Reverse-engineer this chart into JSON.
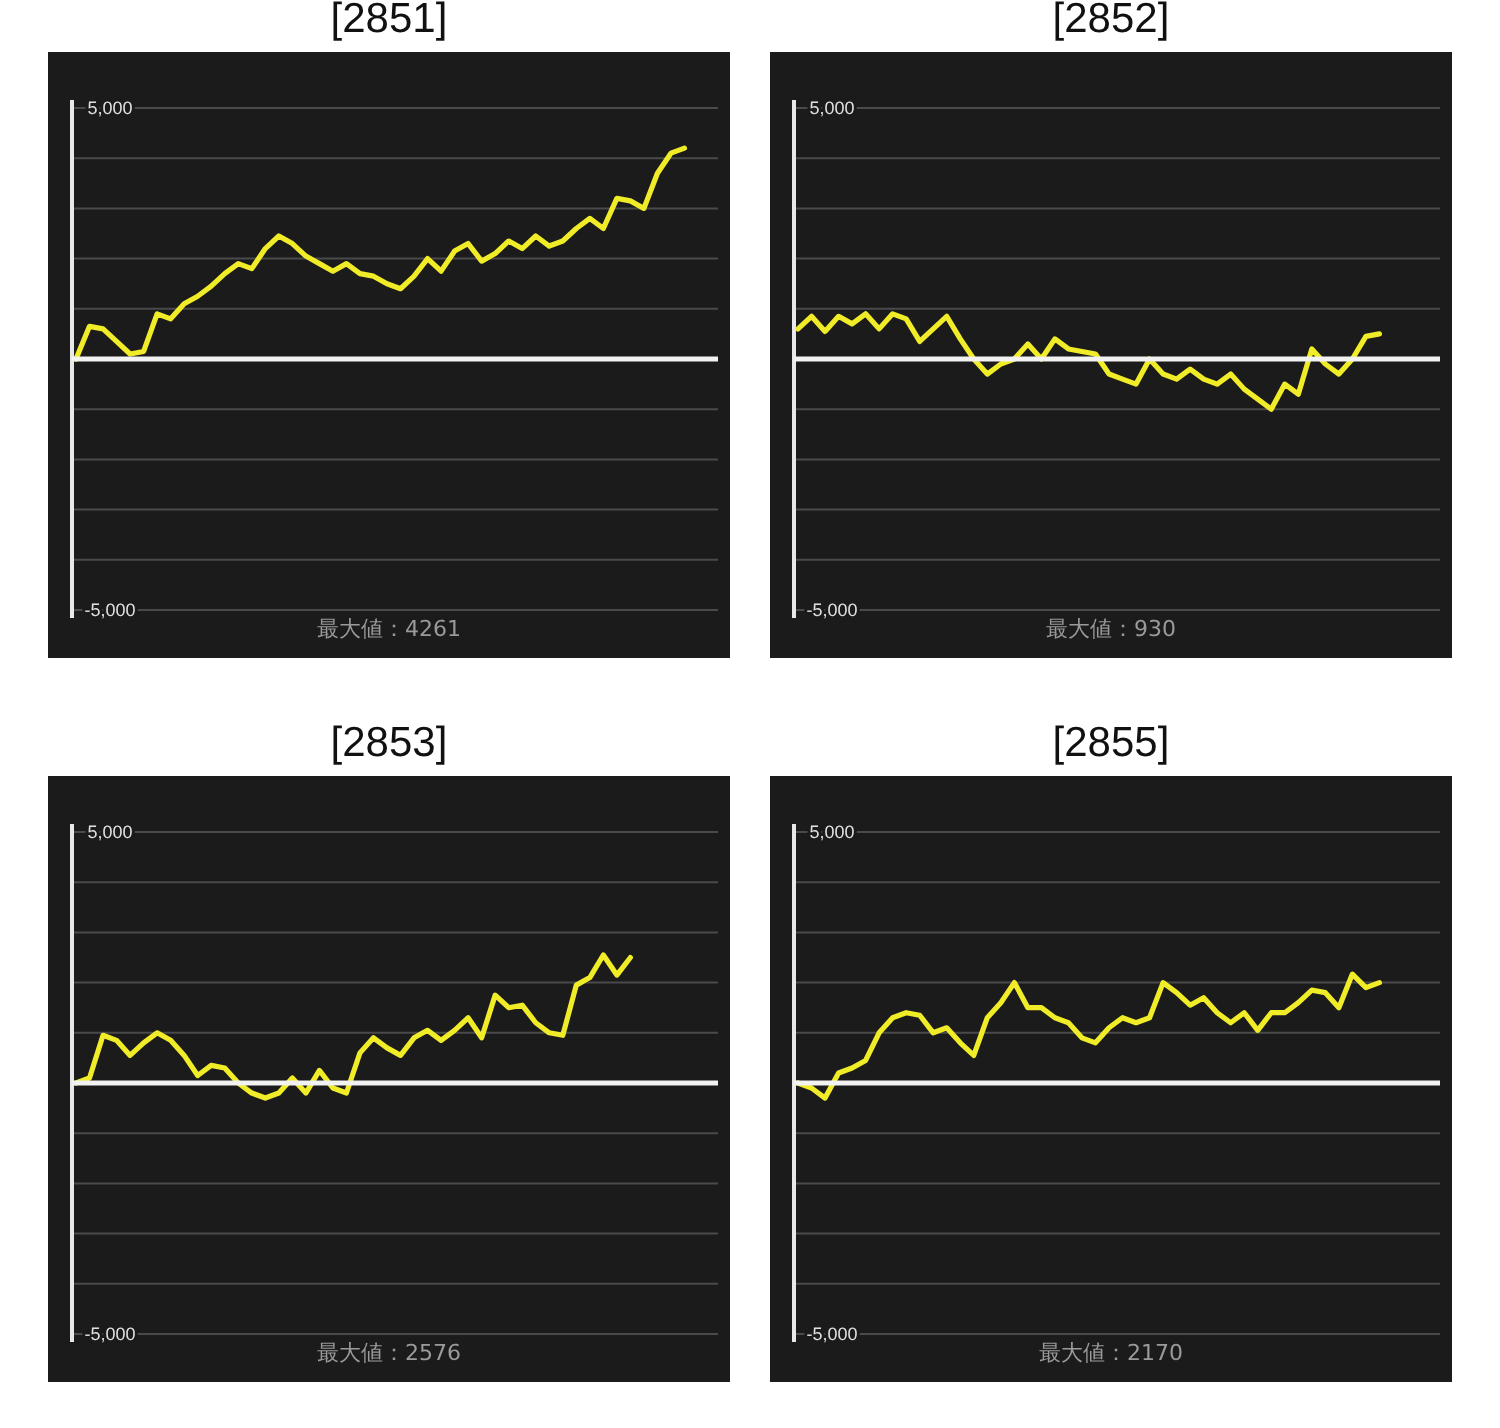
{
  "chart_data": [
    {
      "type": "line",
      "title": "[2851]",
      "tick_labels": "y",
      "grid": "y",
      "ylim": [
        -5000,
        5000
      ],
      "yticks": [
        {
          "value": -5000,
          "label": "-5,000"
        },
        {
          "value": -4000,
          "label": null
        },
        {
          "value": -3000,
          "label": null
        },
        {
          "value": -2000,
          "label": null
        },
        {
          "value": -1000,
          "label": null
        },
        {
          "value": 0,
          "label": null
        },
        {
          "value": 1000,
          "label": null
        },
        {
          "value": 2000,
          "label": null
        },
        {
          "value": 3000,
          "label": null
        },
        {
          "value": 4000,
          "label": null
        },
        {
          "value": 5000,
          "label": "5,000"
        }
      ],
      "categories": [
        null,
        null,
        null,
        null,
        null,
        null,
        null,
        null,
        null,
        null,
        null,
        null,
        null,
        null,
        null,
        null,
        null,
        null,
        null,
        null,
        null,
        null,
        null,
        null,
        null,
        null,
        null,
        null,
        null,
        null,
        null,
        null,
        null,
        null,
        null,
        null,
        null,
        null,
        null,
        null,
        null,
        null,
        null,
        null,
        null,
        null,
        null
      ],
      "series": [
        {
          "color": "#f0ec28",
          "values": [
            0,
            650,
            600,
            350,
            100,
            150,
            900,
            800,
            1100,
            1250,
            1450,
            1700,
            1900,
            1800,
            2200,
            2450,
            2300,
            2050,
            1900,
            1750,
            1900,
            1700,
            1650,
            1500,
            1400,
            1650,
            2000,
            1750,
            2150,
            2300,
            1950,
            2100,
            2350,
            2200,
            2450,
            2250,
            2350,
            2600,
            2800,
            2600,
            3200,
            3150,
            3000,
            3700,
            4100,
            4200,
            null
          ]
        }
      ],
      "annotations": [
        "最大値：4261"
      ]
    },
    {
      "type": "line",
      "title": "[2852]",
      "tick_labels": "y",
      "grid": "y",
      "ylim": [
        -5000,
        5000
      ],
      "yticks": [
        {
          "value": -5000,
          "label": "-5,000"
        },
        {
          "value": -4000,
          "label": null
        },
        {
          "value": -3000,
          "label": null
        },
        {
          "value": -2000,
          "label": null
        },
        {
          "value": -1000,
          "label": null
        },
        {
          "value": 0,
          "label": null
        },
        {
          "value": 1000,
          "label": null
        },
        {
          "value": 2000,
          "label": null
        },
        {
          "value": 3000,
          "label": null
        },
        {
          "value": 4000,
          "label": null
        },
        {
          "value": 5000,
          "label": "5,000"
        }
      ],
      "categories": [
        null,
        null,
        null,
        null,
        null,
        null,
        null,
        null,
        null,
        null,
        null,
        null,
        null,
        null,
        null,
        null,
        null,
        null,
        null,
        null,
        null,
        null,
        null,
        null,
        null,
        null,
        null,
        null,
        null,
        null,
        null,
        null,
        null,
        null,
        null,
        null,
        null,
        null,
        null,
        null,
        null,
        null,
        null,
        null,
        null,
        null,
        null
      ],
      "series": [
        {
          "color": "#f0ec28",
          "values": [
            600,
            850,
            550,
            850,
            700,
            900,
            600,
            900,
            800,
            350,
            600,
            850,
            400,
            0,
            -300,
            -100,
            0,
            300,
            0,
            400,
            200,
            150,
            100,
            -300,
            -400,
            -500,
            0,
            -300,
            -400,
            -200,
            -400,
            -500,
            -300,
            -600,
            -800,
            -1000,
            -500,
            -700,
            200,
            -100,
            -300,
            0,
            450,
            500,
            null,
            null,
            null
          ]
        }
      ],
      "annotations": [
        "最大値：930"
      ]
    },
    {
      "type": "line",
      "title": "[2853]",
      "tick_labels": "y",
      "grid": "y",
      "ylim": [
        -5000,
        5000
      ],
      "yticks": [
        {
          "value": -5000,
          "label": "-5,000"
        },
        {
          "value": -4000,
          "label": null
        },
        {
          "value": -3000,
          "label": null
        },
        {
          "value": -2000,
          "label": null
        },
        {
          "value": -1000,
          "label": null
        },
        {
          "value": 0,
          "label": null
        },
        {
          "value": 1000,
          "label": null
        },
        {
          "value": 2000,
          "label": null
        },
        {
          "value": 3000,
          "label": null
        },
        {
          "value": 4000,
          "label": null
        },
        {
          "value": 5000,
          "label": "5,000"
        }
      ],
      "categories": [
        null,
        null,
        null,
        null,
        null,
        null,
        null,
        null,
        null,
        null,
        null,
        null,
        null,
        null,
        null,
        null,
        null,
        null,
        null,
        null,
        null,
        null,
        null,
        null,
        null,
        null,
        null,
        null,
        null,
        null,
        null,
        null,
        null,
        null,
        null,
        null,
        null,
        null,
        null,
        null,
        null,
        null,
        null,
        null,
        null,
        null,
        null
      ],
      "series": [
        {
          "color": "#f0ec28",
          "values": [
            0,
            100,
            950,
            850,
            550,
            800,
            1000,
            850,
            550,
            150,
            350,
            300,
            0,
            -200,
            -300,
            -200,
            100,
            -200,
            250,
            -100,
            -200,
            600,
            900,
            700,
            550,
            900,
            1050,
            850,
            1050,
            1300,
            900,
            1750,
            1500,
            1550,
            1200,
            1000,
            950,
            1950,
            2100,
            2550,
            2150,
            2500,
            null,
            null,
            null,
            null,
            null
          ]
        }
      ],
      "annotations": [
        "最大値：2576"
      ]
    },
    {
      "type": "line",
      "title": "[2855]",
      "tick_labels": "y",
      "grid": "y",
      "ylim": [
        -5000,
        5000
      ],
      "yticks": [
        {
          "value": -5000,
          "label": "-5,000"
        },
        {
          "value": -4000,
          "label": null
        },
        {
          "value": -3000,
          "label": null
        },
        {
          "value": -2000,
          "label": null
        },
        {
          "value": -1000,
          "label": null
        },
        {
          "value": 0,
          "label": null
        },
        {
          "value": 1000,
          "label": null
        },
        {
          "value": 2000,
          "label": null
        },
        {
          "value": 3000,
          "label": null
        },
        {
          "value": 4000,
          "label": null
        },
        {
          "value": 5000,
          "label": "5,000"
        }
      ],
      "categories": [
        null,
        null,
        null,
        null,
        null,
        null,
        null,
        null,
        null,
        null,
        null,
        null,
        null,
        null,
        null,
        null,
        null,
        null,
        null,
        null,
        null,
        null,
        null,
        null,
        null,
        null,
        null,
        null,
        null,
        null,
        null,
        null,
        null,
        null,
        null,
        null,
        null,
        null,
        null,
        null,
        null,
        null,
        null,
        null,
        null,
        null,
        null
      ],
      "series": [
        {
          "color": "#f0ec28",
          "values": [
            0,
            -100,
            -300,
            200,
            300,
            450,
            1000,
            1300,
            1400,
            1350,
            1000,
            1100,
            800,
            550,
            1300,
            1600,
            2000,
            1500,
            1500,
            1300,
            1200,
            900,
            800,
            1100,
            1300,
            1200,
            1300,
            2000,
            1800,
            1550,
            1700,
            1400,
            1200,
            1400,
            1050,
            1400,
            1400,
            1600,
            1850,
            1800,
            1500,
            2170,
            1900,
            2000,
            null,
            null,
            null
          ]
        }
      ],
      "annotations": [
        "最大値：2170"
      ]
    }
  ]
}
